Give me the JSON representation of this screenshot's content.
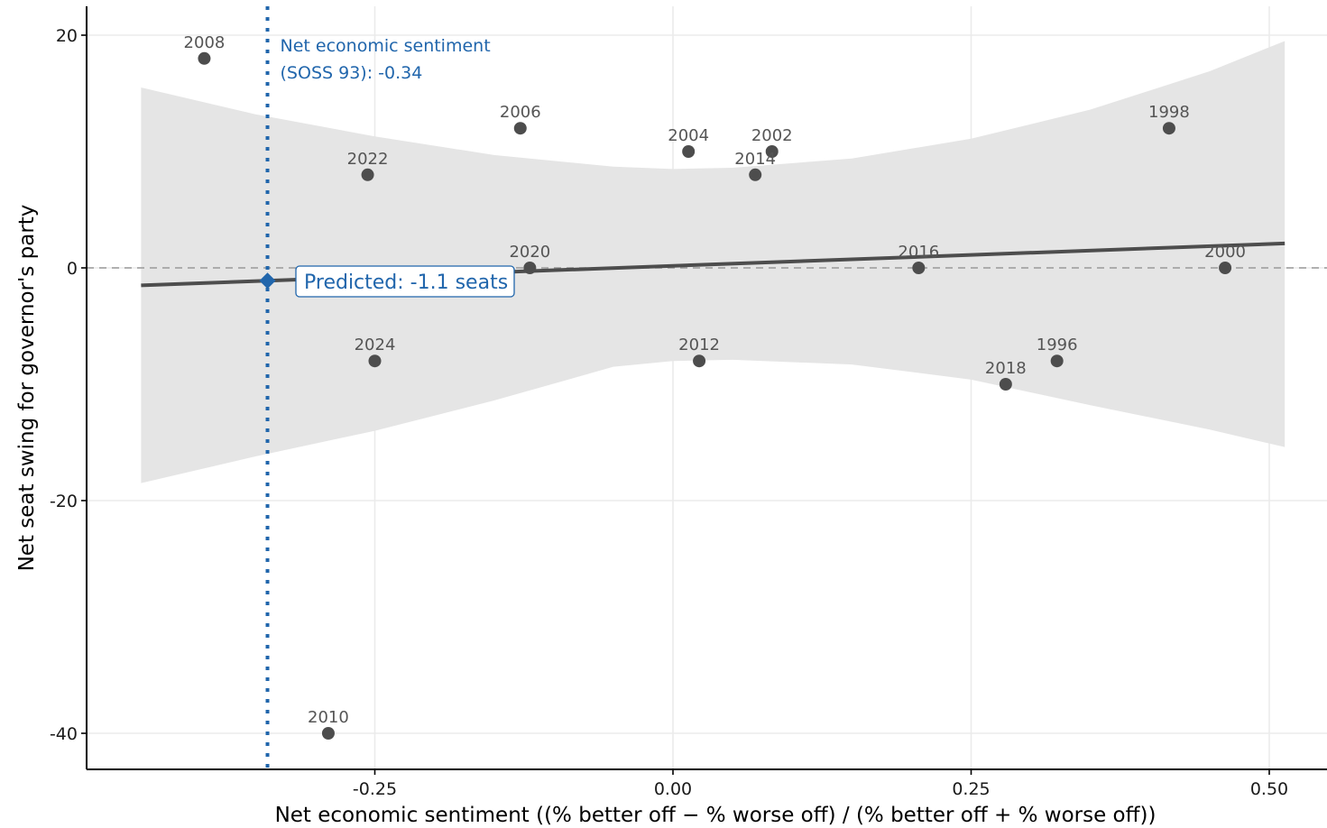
{
  "chart_data": {
    "type": "scatter",
    "xlabel": "Net economic sentiment ((% better off − % worse off) / (% better off + % worse off))",
    "ylabel": "Net seat swing for governor's party",
    "xlim": [
      -0.49,
      0.55
    ],
    "ylim": [
      -43,
      22.5
    ],
    "x_ticks": [
      -0.25,
      0.0,
      0.25,
      0.5
    ],
    "x_tick_labels": [
      "-0.25",
      "0.00",
      "0.25",
      "0.50"
    ],
    "y_ticks": [
      -40,
      -20,
      0,
      20
    ],
    "y_tick_labels": [
      "-40",
      "-20",
      "0",
      "20"
    ],
    "grid": true,
    "points": [
      {
        "label": "2008",
        "x": -0.393,
        "y": 18
      },
      {
        "label": "2006",
        "x": -0.128,
        "y": 12
      },
      {
        "label": "2022",
        "x": -0.256,
        "y": 8
      },
      {
        "label": "2004",
        "x": 0.013,
        "y": 10
      },
      {
        "label": "2002",
        "x": 0.083,
        "y": 10
      },
      {
        "label": "2014",
        "x": 0.069,
        "y": 8
      },
      {
        "label": "1998",
        "x": 0.416,
        "y": 12
      },
      {
        "label": "2020",
        "x": -0.12,
        "y": 0
      },
      {
        "label": "2016",
        "x": 0.206,
        "y": 0
      },
      {
        "label": "2000",
        "x": 0.463,
        "y": 0
      },
      {
        "label": "2024",
        "x": -0.25,
        "y": -8
      },
      {
        "label": "2012",
        "x": 0.022,
        "y": -8
      },
      {
        "label": "1996",
        "x": 0.322,
        "y": -8
      },
      {
        "label": "2018",
        "x": 0.279,
        "y": -10
      },
      {
        "label": "2010",
        "x": -0.289,
        "y": -40
      }
    ],
    "fit_line": {
      "x_start": -0.446,
      "y_start": -1.5,
      "x_end": 0.513,
      "y_end": 2.1
    },
    "confidence_band": {
      "x": [
        -0.446,
        -0.35,
        -0.25,
        -0.15,
        -0.05,
        0.0,
        0.05,
        0.15,
        0.25,
        0.35,
        0.45,
        0.513
      ],
      "upper": [
        15.5,
        13.2,
        11.3,
        9.7,
        8.7,
        8.5,
        8.6,
        9.4,
        11.1,
        13.6,
        16.9,
        19.5
      ],
      "lower": [
        -18.5,
        -16.2,
        -14.0,
        -11.4,
        -8.5,
        -8.0,
        -7.9,
        -8.3,
        -9.6,
        -11.8,
        -13.9,
        -15.4
      ]
    },
    "reference_line": {
      "x": -0.34,
      "label_line1": "Net economic sentiment",
      "label_line2": "(SOSS 93): -0.34"
    },
    "prediction": {
      "x": -0.34,
      "y": -1.1,
      "label": "Predicted: -1.1 seats"
    },
    "colors": {
      "points": "#4d4d4d",
      "fit_line": "#4d4d4d",
      "band": "#e5e5e5",
      "reference": "#2166ac",
      "zero_line": "#999999",
      "grid": "#ebebeb"
    }
  }
}
